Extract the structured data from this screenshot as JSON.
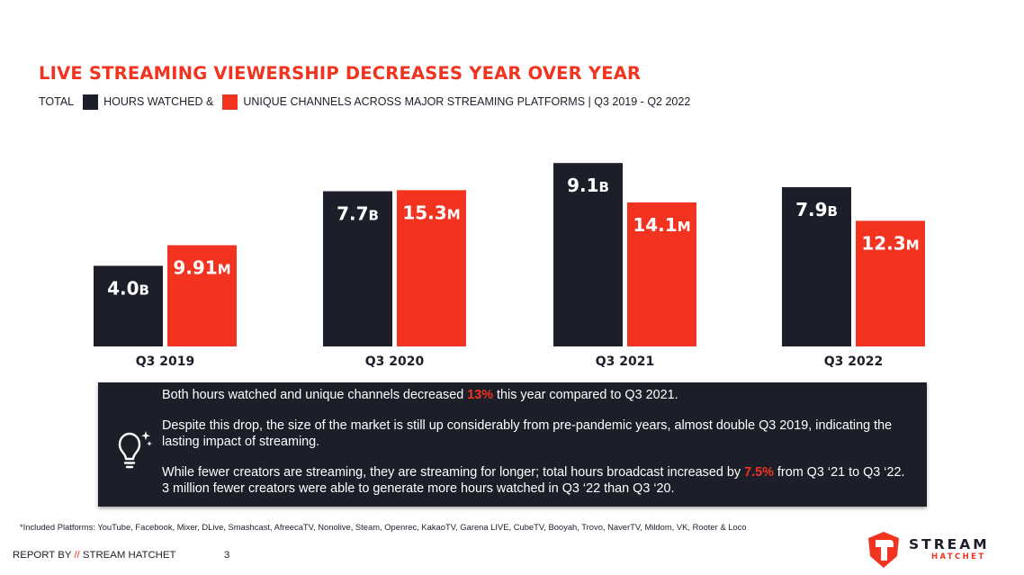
{
  "title": "LIVE STREAMING VIEWERSHIP DECREASES YEAR OVER YEAR",
  "legend": {
    "prefix": "TOTAL",
    "series1_label": "HOURS WATCHED &",
    "series2_label": "UNIQUE CHANNELS ACROSS MAJOR STREAMING PLATFORMS | Q3 2019 - Q2 2022"
  },
  "colors": {
    "dark": "#1c1f2a",
    "red": "#f2331f",
    "background": "#ffffff"
  },
  "chart_data": {
    "type": "bar",
    "categories": [
      "Q3 2019",
      "Q3 2020",
      "Q3 2021",
      "Q3 2022"
    ],
    "series": [
      {
        "name": "HOURS WATCHED",
        "unit": "B",
        "color": "#1c1f2a",
        "values": [
          4.0,
          7.7,
          9.1,
          7.9
        ],
        "labels": [
          "4.0",
          "7.7",
          "9.1",
          "7.9"
        ]
      },
      {
        "name": "UNIQUE CHANNELS",
        "unit": "M",
        "color": "#f2331f",
        "values": [
          9.91,
          15.3,
          14.1,
          12.3
        ],
        "labels": [
          "9.91",
          "15.3",
          "14.1",
          "12.3"
        ]
      }
    ],
    "axes_visible": false,
    "grid": false
  },
  "insight": {
    "icon": "lightbulb-icon",
    "p1_before": "Both hours watched and unique channels decreased ",
    "p1_highlight": "13%",
    "p1_after": " this year compared to Q3 2021.",
    "p2": "Despite this drop, the size of the market is still up considerably from pre-pandemic years, almost double Q3 2019, indicating the lasting impact of streaming.",
    "p3_before": "While fewer creators are streaming, they are streaming for longer; total hours broadcast increased by ",
    "p3_highlight": "7.5%",
    "p3_after": " from Q3 ‘21 to Q3 ‘22. 3 million fewer creators were able to generate more hours watched in Q3 ‘22 than Q3 ‘20."
  },
  "footnote": "*Included Platforms: YouTube, Facebook, Mixer, DLive, Smashcast, AfreecaTV, Nonolive, Steam, Openrec, KakaoTV, Garena LIVE, CubeTV, Booyah, Trovo, NaverTV, Mildom, VK, Rooter & Loco",
  "footer": {
    "report_prefix": "REPORT BY ",
    "slash": "//",
    "report_brand": " STREAM HATCHET",
    "page_number": "3",
    "logo_word1": "STREAM",
    "logo_word2": "HATCHET"
  }
}
